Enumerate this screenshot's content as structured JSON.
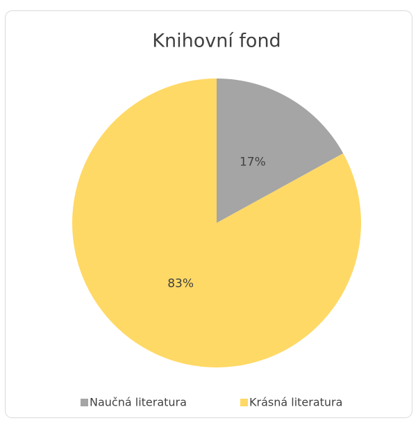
{
  "chart_data": {
    "type": "pie",
    "title": "Knihovní fond",
    "categories": [
      "Naučná literatura",
      "Krásná literatura"
    ],
    "values": [
      17,
      83
    ],
    "value_labels": [
      "17%",
      "83%"
    ],
    "colors": [
      "#a5a5a5",
      "#ffd966"
    ],
    "legend": "bottom"
  }
}
